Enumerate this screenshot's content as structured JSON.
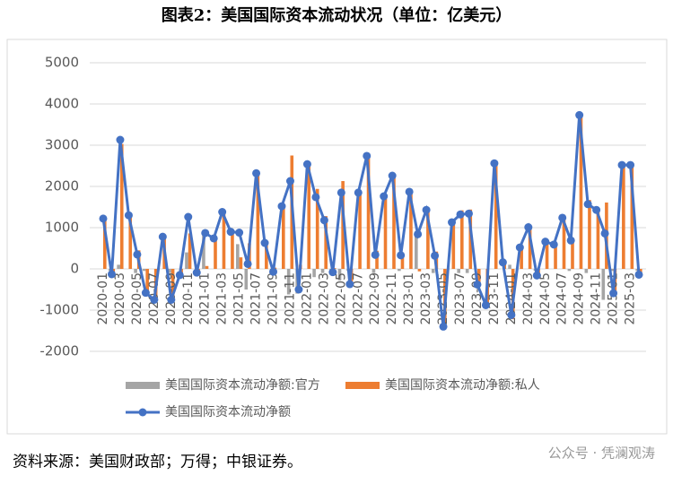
{
  "chart_data": {
    "type": "bar-line",
    "title": "图表2：美国国际资本流动状况（单位：亿美元）",
    "source": "资料来源：美国财政部；万得；中银证券。",
    "watermark": "公众号 · 凭澜观涛",
    "categories": [
      "2020-01",
      null,
      "2020-03",
      null,
      "2020-05",
      null,
      "2020-07",
      null,
      "2020-09",
      null,
      "2020-11",
      null,
      "2021-01",
      null,
      "2021-03",
      null,
      "2021-05",
      null,
      "2021-07",
      null,
      "2021-09",
      null,
      "2021-11",
      null,
      "2022-01",
      null,
      "2022-03",
      null,
      "2022-05",
      null,
      "2022-07",
      null,
      "2022-09",
      null,
      "2022-11",
      null,
      "2023-01",
      null,
      "2023-03",
      null,
      "2023-05",
      null,
      "2023-07",
      null,
      "2023-09",
      null,
      "2023-11",
      null,
      "2024-01",
      null,
      "2024-03",
      null,
      "2024-05",
      null,
      "2024-07",
      null,
      "2024-09",
      null,
      "2024-11",
      null,
      "2025-01",
      null,
      "2025-03",
      null
    ],
    "series": [
      {
        "name": "美国国际资本流动净额:官方",
        "kind": "bar",
        "color": "#a5a5a5",
        "values": [
          0,
          -50,
          100,
          0,
          -100,
          -50,
          0,
          0,
          -100,
          0,
          400,
          0,
          800,
          0,
          0,
          0,
          600,
          -500,
          0,
          0,
          -100,
          0,
          -620,
          -600,
          0,
          -200,
          -100,
          -100,
          -280,
          -50,
          0,
          0,
          -100,
          0,
          0,
          -50,
          0,
          900,
          0,
          -100,
          0,
          0,
          -100,
          -100,
          0,
          0,
          0,
          0,
          100,
          0,
          0,
          -50,
          0,
          0,
          0,
          -50,
          0,
          -100,
          0,
          -750,
          -50,
          0,
          0,
          -50
        ]
      },
      {
        "name": "美国国际资本流动净额:私人",
        "kind": "bar",
        "color": "#ed7d31",
        "values": [
          1220,
          -80,
          3030,
          1300,
          450,
          -530,
          -750,
          780,
          -650,
          -150,
          860,
          -90,
          70,
          740,
          1380,
          900,
          280,
          620,
          2320,
          630,
          30,
          1520,
          2750,
          100,
          2540,
          1940,
          1280,
          20,
          2130,
          -320,
          1850,
          2740,
          440,
          1760,
          2260,
          380,
          1870,
          -60,
          1430,
          420,
          -1400,
          1130,
          1420,
          1440,
          -380,
          -880,
          2560,
          160,
          -1220,
          520,
          1010,
          -110,
          660,
          590,
          1240,
          740,
          3730,
          1670,
          1430,
          1610,
          -540,
          2520,
          2520,
          -90
        ]
      },
      {
        "name": "美国国际资本流动净额",
        "kind": "line",
        "color": "#4472c4",
        "values": [
          1220,
          -130,
          3130,
          1300,
          350,
          -580,
          -750,
          780,
          -750,
          -150,
          1260,
          -90,
          870,
          740,
          1380,
          900,
          880,
          120,
          2320,
          630,
          -70,
          1520,
          2130,
          -500,
          2540,
          1740,
          1180,
          -80,
          1850,
          -370,
          1850,
          2740,
          340,
          1760,
          2260,
          330,
          1870,
          840,
          1430,
          320,
          -1400,
          1130,
          1320,
          1340,
          -380,
          -880,
          2560,
          160,
          -1120,
          520,
          1010,
          -160,
          660,
          590,
          1240,
          690,
          3730,
          1570,
          1430,
          860,
          -590,
          2520,
          2520,
          -140
        ]
      }
    ],
    "ylim": [
      -2000,
      5000
    ],
    "yticks": [
      -2000,
      -1000,
      0,
      1000,
      2000,
      3000,
      4000,
      5000
    ],
    "grid": true
  }
}
